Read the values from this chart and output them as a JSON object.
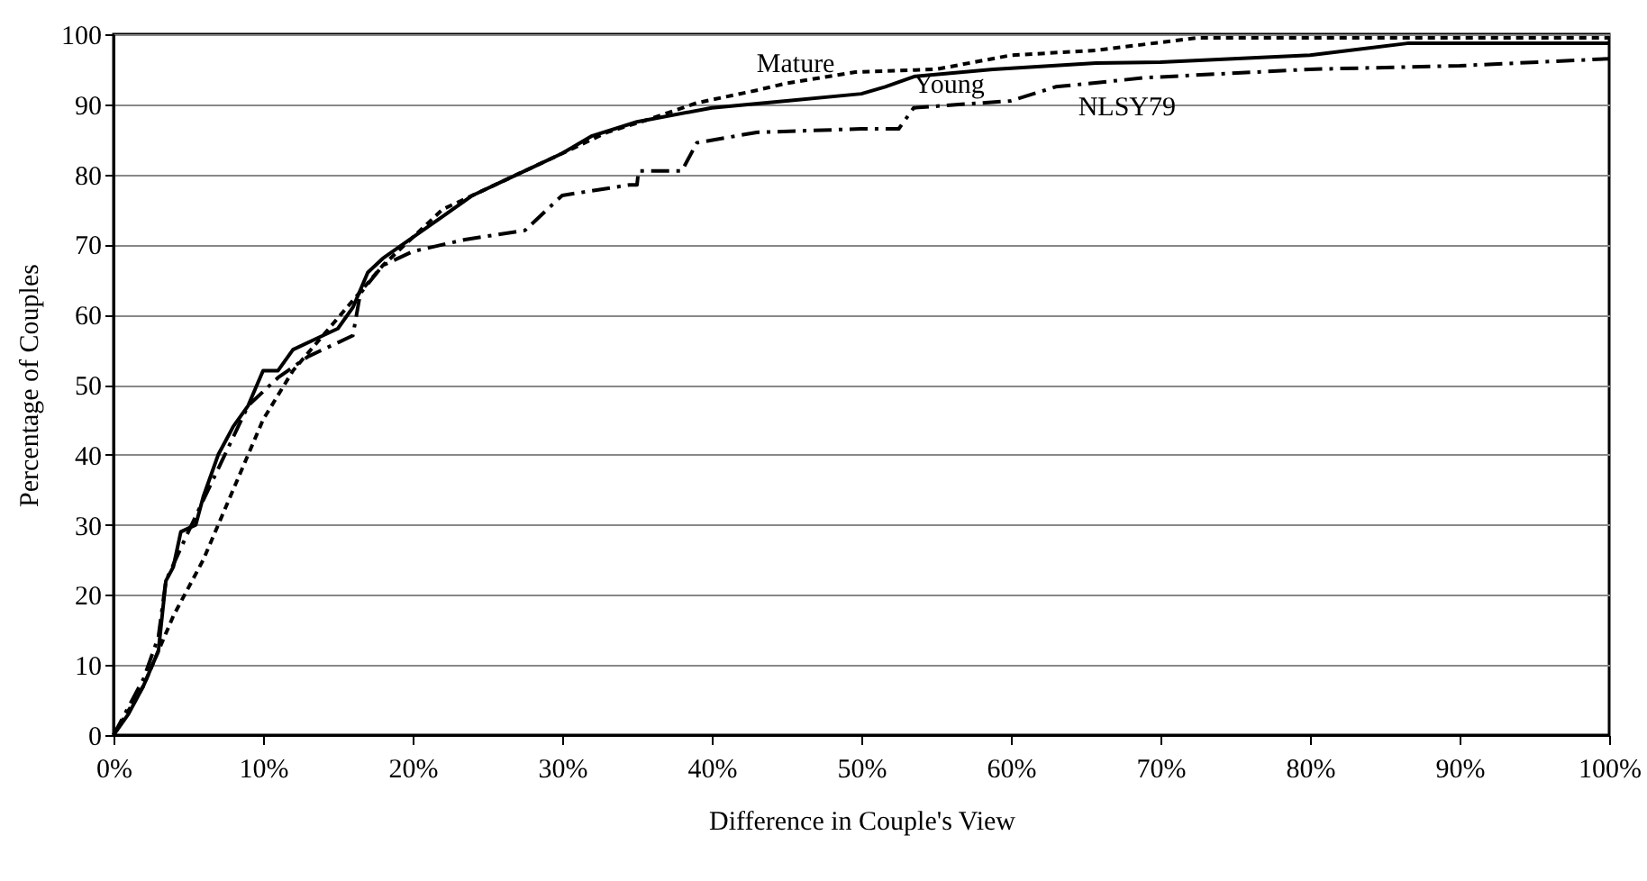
{
  "chart_data": {
    "type": "line",
    "xlabel": "Difference in Couple's View",
    "ylabel": "Percentage of Couples",
    "xlim": [
      0,
      100
    ],
    "ylim": [
      0,
      100
    ],
    "xticks": [
      {
        "value": 0,
        "label": "0%"
      },
      {
        "value": 10,
        "label": "10%"
      },
      {
        "value": 20,
        "label": "20%"
      },
      {
        "value": 30,
        "label": "30%"
      },
      {
        "value": 40,
        "label": "40%"
      },
      {
        "value": 50,
        "label": "50%"
      },
      {
        "value": 60,
        "label": "60%"
      },
      {
        "value": 70,
        "label": "70%"
      },
      {
        "value": 80,
        "label": "80%"
      },
      {
        "value": 90,
        "label": "90%"
      },
      {
        "value": 100,
        "label": "100%"
      }
    ],
    "yticks": [
      0,
      10,
      20,
      30,
      40,
      50,
      60,
      70,
      80,
      90,
      100
    ],
    "grid": "y",
    "legend": false,
    "marker": "none",
    "series": [
      {
        "name": "Mature",
        "color": "#000000",
        "line_style": "dotted",
        "x": [
          0,
          2,
          4,
          6,
          8,
          10,
          12,
          14,
          16,
          18,
          20,
          22,
          25,
          28,
          30,
          33,
          36,
          39,
          43,
          45,
          49.6,
          55,
          60,
          65.7,
          72.5,
          80,
          100
        ],
        "values": [
          0,
          7,
          17,
          25,
          35,
          45,
          52,
          57,
          62,
          67,
          71,
          75,
          78,
          81,
          83,
          86,
          88,
          90.2,
          92,
          93,
          94.6,
          95,
          97,
          97.7,
          99.5,
          99.5,
          99.5
        ]
      },
      {
        "name": "Young",
        "color": "#000000",
        "line_style": "solid",
        "x": [
          0,
          1,
          2,
          3,
          3.5,
          4,
          4.5,
          5.5,
          6,
          7,
          8,
          9,
          10,
          11,
          12,
          14,
          15,
          16,
          17,
          18,
          20,
          22,
          24,
          26,
          28,
          30,
          32,
          35,
          40,
          45,
          50,
          51.6,
          53.6,
          58.8,
          65.7,
          70,
          80,
          86.5,
          100
        ],
        "values": [
          0,
          3,
          7,
          12,
          22,
          24,
          29,
          30,
          34,
          40,
          44,
          47,
          52,
          52,
          55,
          57,
          58,
          61,
          66,
          68,
          71,
          74,
          77,
          79,
          81,
          83,
          85.5,
          87.5,
          89.5,
          90.5,
          91.5,
          92.5,
          94,
          95,
          95.9,
          96,
          97,
          98.7,
          98.7
        ]
      },
      {
        "name": "NLSY79",
        "color": "#000000",
        "line_style": "dashed",
        "x": [
          0,
          2,
          3,
          3.5,
          5,
          7,
          9,
          11,
          13,
          15,
          16,
          16.5,
          18,
          20,
          23.5,
          27.5,
          30,
          34.5,
          35,
          35.1,
          38,
          39,
          43,
          50,
          52.5,
          53.5,
          60,
          63,
          69,
          80,
          90,
          100
        ],
        "values": [
          0,
          8,
          14,
          22,
          29,
          38,
          47,
          51,
          54,
          56,
          57,
          63,
          67,
          69,
          70.7,
          72,
          77,
          78.5,
          78.5,
          80.5,
          80.5,
          84.5,
          86,
          86.5,
          86.5,
          89.5,
          90.5,
          92.5,
          93.8,
          95,
          95.5,
          96.5
        ]
      }
    ]
  }
}
